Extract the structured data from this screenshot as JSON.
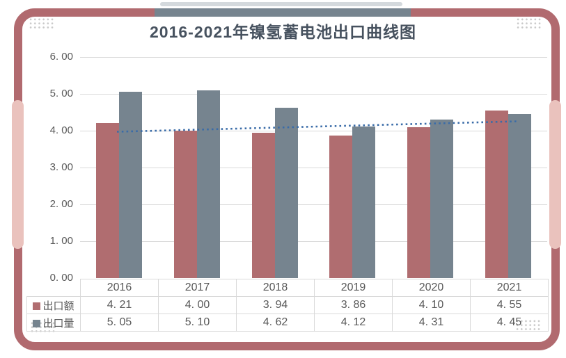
{
  "card": {
    "title": "2016-2021年镍氢蓄电池出口曲线图"
  },
  "chart_data": {
    "type": "bar",
    "title": "2016-2021年镍氢蓄电池出口曲线图",
    "categories": [
      "2016",
      "2017",
      "2018",
      "2019",
      "2020",
      "2021"
    ],
    "series": [
      {
        "name": "出口额",
        "color": "#b06d70",
        "values": [
          4.21,
          4.0,
          3.94,
          3.86,
          4.1,
          4.55
        ]
      },
      {
        "name": "出口量",
        "color": "#76848f",
        "values": [
          5.05,
          5.1,
          4.62,
          4.12,
          4.31,
          4.45
        ]
      }
    ],
    "trendline": {
      "on_series": "出口额",
      "type": "linear",
      "color": "#3a6ca8",
      "style": "dotted"
    },
    "y_axis": {
      "min": 0,
      "max": 6,
      "step": 1,
      "tick_labels": [
        "0. 00",
        "1. 00",
        "2. 00",
        "3. 00",
        "4. 00",
        "5. 00",
        "6. 00"
      ]
    },
    "value_format": "0. 00",
    "grid": true,
    "legend_position": "table-rows-left"
  },
  "colors": {
    "frame": "#b16a6f",
    "frame_accent_light": "#eac2bd",
    "ribbon": "#76848f",
    "gridline": "#d9d9d9",
    "table_border": "#d9d9d9",
    "text": "#595959",
    "title_text": "#47525f",
    "dots_decoration": "#c9c9c9",
    "trendline": "#3a6ca8"
  }
}
